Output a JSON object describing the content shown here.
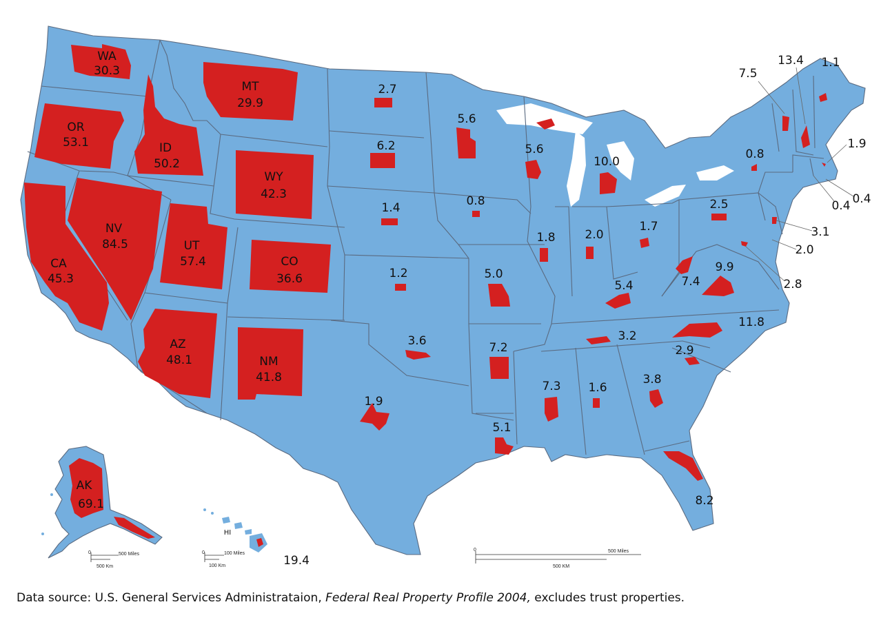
{
  "colors": {
    "land": "#74aede",
    "federal": "#d42020",
    "border": "#5a6a80",
    "water": "#ffffff"
  },
  "states": [
    {
      "abbr": "WA",
      "value": "30.3"
    },
    {
      "abbr": "OR",
      "value": "53.1"
    },
    {
      "abbr": "CA",
      "value": "45.3"
    },
    {
      "abbr": "ID",
      "value": "50.2"
    },
    {
      "abbr": "NV",
      "value": "84.5"
    },
    {
      "abbr": "MT",
      "value": "29.9"
    },
    {
      "abbr": "WY",
      "value": "42.3"
    },
    {
      "abbr": "UT",
      "value": "57.4"
    },
    {
      "abbr": "CO",
      "value": "36.6"
    },
    {
      "abbr": "AZ",
      "value": "48.1"
    },
    {
      "abbr": "NM",
      "value": "41.8"
    },
    {
      "abbr": "AK",
      "value": "69.1"
    },
    {
      "abbr": "HI",
      "value": "19.4"
    },
    {
      "abbr": "ND",
      "value": "2.7"
    },
    {
      "abbr": "SD",
      "value": "6.2"
    },
    {
      "abbr": "NE",
      "value": "1.4"
    },
    {
      "abbr": "KS",
      "value": "1.2"
    },
    {
      "abbr": "OK",
      "value": "3.6"
    },
    {
      "abbr": "TX",
      "value": "1.9"
    },
    {
      "abbr": "MN",
      "value": "5.6"
    },
    {
      "abbr": "IA",
      "value": "0.8"
    },
    {
      "abbr": "MO",
      "value": "5.0"
    },
    {
      "abbr": "AR",
      "value": "7.2"
    },
    {
      "abbr": "LA",
      "value": "5.1"
    },
    {
      "abbr": "WI",
      "value": "5.6"
    },
    {
      "abbr": "IL",
      "value": "1.8"
    },
    {
      "abbr": "MI",
      "value": "10.0"
    },
    {
      "abbr": "IN",
      "value": "2.0"
    },
    {
      "abbr": "OH",
      "value": "1.7"
    },
    {
      "abbr": "KY",
      "value": "5.4"
    },
    {
      "abbr": "TN",
      "value": "3.2"
    },
    {
      "abbr": "MS",
      "value": "7.3"
    },
    {
      "abbr": "AL",
      "value": "1.6"
    },
    {
      "abbr": "GA",
      "value": "3.8"
    },
    {
      "abbr": "FL",
      "value": "8.2"
    },
    {
      "abbr": "SC",
      "value": "2.9"
    },
    {
      "abbr": "NC",
      "value": "11.8"
    },
    {
      "abbr": "VA",
      "value": "9.9"
    },
    {
      "abbr": "WV",
      "value": "7.4"
    },
    {
      "abbr": "PA",
      "value": "2.5"
    },
    {
      "abbr": "NY",
      "value": "0.8"
    },
    {
      "abbr": "VT",
      "value": "7.5"
    },
    {
      "abbr": "NH",
      "value": "13.4"
    },
    {
      "abbr": "ME",
      "value": "1.1"
    },
    {
      "abbr": "MA",
      "value": "1.9"
    },
    {
      "abbr": "CT",
      "value": "0.4"
    },
    {
      "abbr": "RI",
      "value": "0.4"
    },
    {
      "abbr": "NJ",
      "value": "3.1"
    },
    {
      "abbr": "DE",
      "value": "2.0"
    },
    {
      "abbr": "MD",
      "value": "2.8"
    }
  ],
  "scale_main": {
    "miles": "500 Miles",
    "km": "500 KM",
    "zero": "0"
  },
  "scale_ak": {
    "miles": "500 Miles",
    "km": "500 Km",
    "zero": "0"
  },
  "scale_hi": {
    "miles": "100 Miles",
    "km": "100 Km",
    "zero": "0"
  },
  "source": {
    "prefix": "Data source: U.S. General Services Administrataion, ",
    "title": "Federal Real Property Profile 2004,",
    "suffix": " excludes trust properties."
  }
}
